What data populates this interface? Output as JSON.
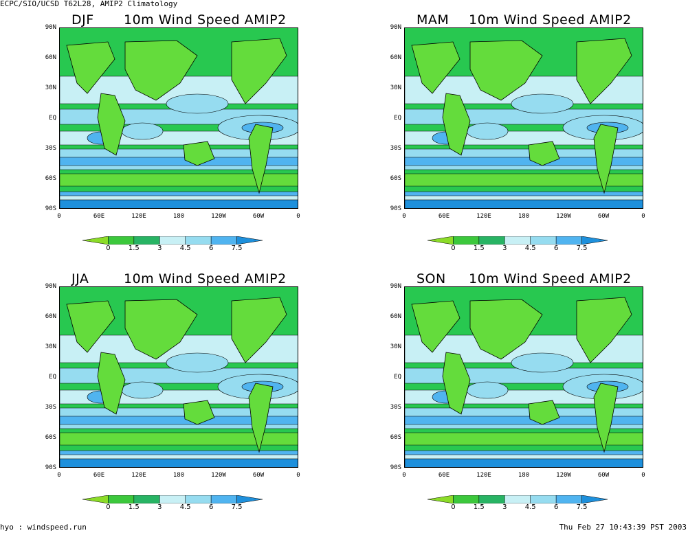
{
  "header": "ECPC/SIO/UCSD T62L28, AMIP2 Climatology",
  "footer_left": "hyo : windspeed.run",
  "footer_right": "Thu Feb 27 10:43:39 PST 2003",
  "panels": [
    {
      "season": "DJF",
      "title": "10m Wind Speed  AMIP2"
    },
    {
      "season": "MAM",
      "title": "10m Wind Speed  AMIP2"
    },
    {
      "season": "JJA",
      "title": "10m Wind Speed  AMIP2"
    },
    {
      "season": "SON",
      "title": "10m Wind Speed  AMIP2"
    }
  ],
  "lat_labels": [
    "90N",
    "60N",
    "30N",
    "EQ",
    "30S",
    "60S",
    "90S"
  ],
  "lon_labels": [
    "0",
    "60E",
    "120E",
    "180",
    "120W",
    "60W",
    "0"
  ],
  "colorbar": {
    "labels": [
      "0",
      "1.5",
      "3",
      "4.5",
      "6",
      "7.5"
    ],
    "colors": [
      "#8cdc28",
      "#3cc83c",
      "#28b464",
      "#c8f0f5",
      "#96dcf0",
      "#50b4f0",
      "#1e90dc"
    ]
  },
  "colors": {
    "land_green": "#28c850",
    "light_green": "#64dc3c",
    "pale_blue": "#c8f0f5",
    "mid_blue": "#96dcf0",
    "blue": "#50b4f0",
    "dark_blue": "#1e90dc"
  }
}
